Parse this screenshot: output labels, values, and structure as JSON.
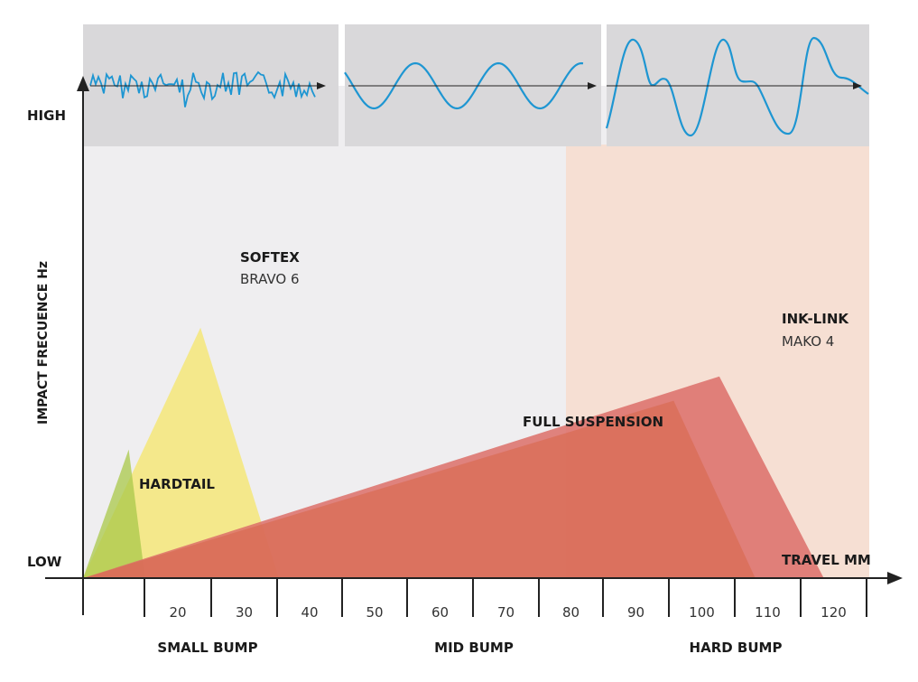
{
  "colors": {
    "panel": "#d9d8da",
    "light_area": "#efeef0",
    "hard_area": "#f6dfd3",
    "wave": "#1e96d2",
    "hardtail": "#a9c84a",
    "softex": "#f5e66a",
    "full_suspension": "#d96c55",
    "ink_link": "#dc6f68",
    "axis": "#222222"
  },
  "chart_data": {
    "type": "area",
    "xlabel": "TRAVEL MM",
    "ylabel": "IMPACT FRECUENCE Hz",
    "y_ticks": [
      "HIGH",
      "LOW"
    ],
    "x_ticks": [
      20,
      30,
      40,
      50,
      60,
      70,
      80,
      90,
      100,
      110,
      120
    ],
    "xlim": [
      0,
      120
    ],
    "zones": [
      {
        "label": "SMALL BUMP",
        "range": [
          0,
          40
        ]
      },
      {
        "label": "MID BUMP",
        "range": [
          40,
          80
        ]
      },
      {
        "label": "HARD BUMP",
        "range": [
          80,
          120
        ]
      }
    ],
    "series": [
      {
        "name": "HARDTAIL",
        "points": [
          [
            0,
            0
          ],
          [
            7,
            0.37
          ],
          [
            9.5,
            0
          ]
        ]
      },
      {
        "name": "SOFTEX",
        "sub": "BRAVO 6",
        "points": [
          [
            0,
            0
          ],
          [
            18,
            0.72
          ],
          [
            30,
            0
          ]
        ]
      },
      {
        "name": "FULL SUSPENSION",
        "points": [
          [
            0,
            0
          ],
          [
            90.5,
            0.51
          ],
          [
            103,
            0
          ]
        ]
      },
      {
        "name": "INK-LINK",
        "sub": "MAKO 4",
        "points": [
          [
            0,
            0
          ],
          [
            97.5,
            0.58
          ],
          [
            113.5,
            0
          ]
        ]
      }
    ],
    "waveforms": [
      "SMALL BUMP",
      "MID BUMP",
      "HARD BUMP"
    ]
  }
}
